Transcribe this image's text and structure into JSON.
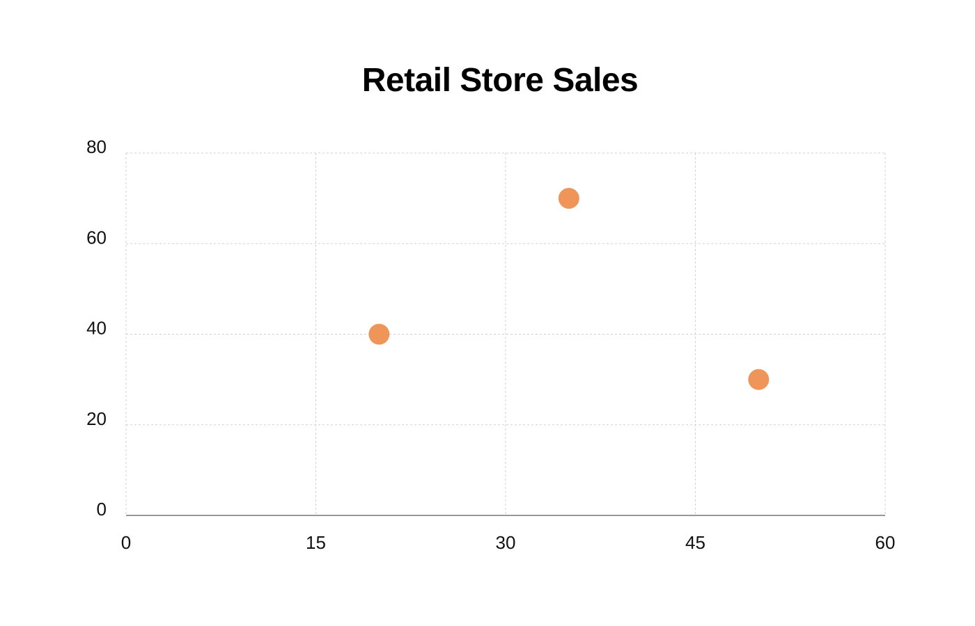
{
  "chart_data": {
    "type": "scatter",
    "title": "Retail Store Sales",
    "xlabel": "",
    "ylabel": "",
    "xlim": [
      0,
      60
    ],
    "ylim": [
      0,
      80
    ],
    "x_ticks": [
      0,
      15,
      30,
      45,
      60
    ],
    "y_ticks": [
      0,
      20,
      40,
      60,
      80
    ],
    "grid": true,
    "series": [
      {
        "color": "#f0955a",
        "points": [
          {
            "x": 20,
            "y": 40
          },
          {
            "x": 35,
            "y": 70
          },
          {
            "x": 50,
            "y": 30
          }
        ]
      }
    ]
  }
}
